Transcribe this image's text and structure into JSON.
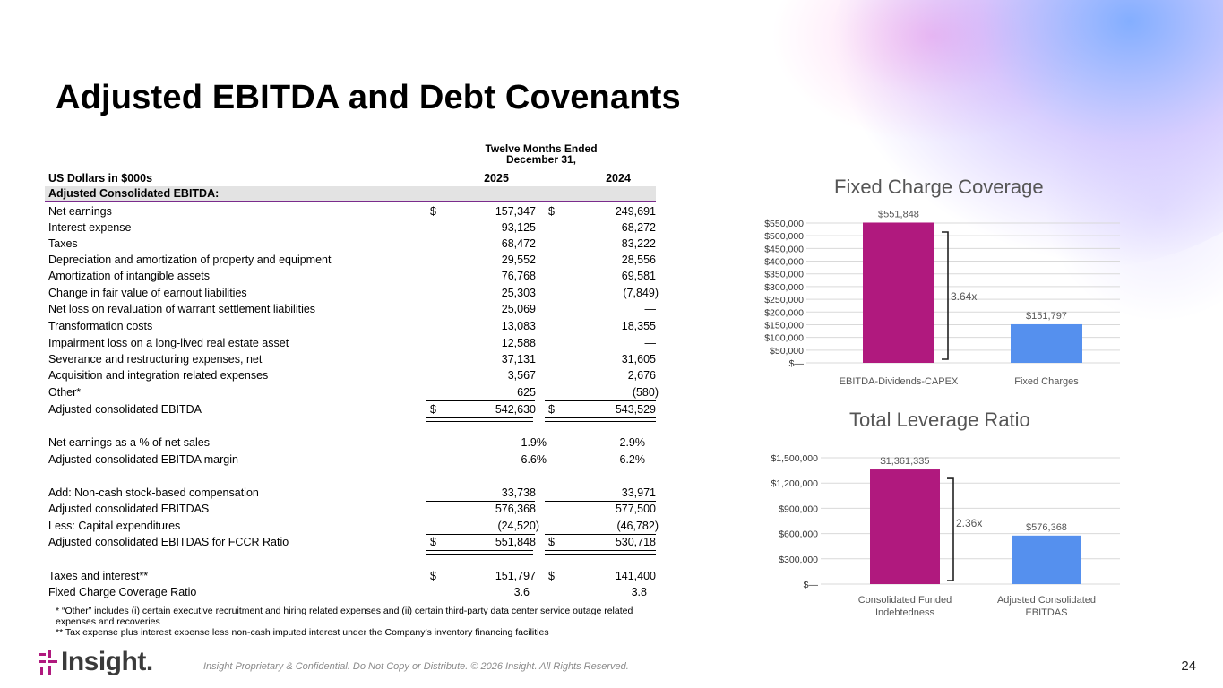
{
  "title": "Adjusted EBITDA and Debt Covenants",
  "table": {
    "period_header_line1": "Twelve Months Ended",
    "period_header_line2": "December 31,",
    "units_label": "US Dollars in $000s",
    "col_2025": "2025",
    "col_2024": "2024",
    "section_label": "Adjusted Consolidated EBITDA:",
    "currency_symbol": "$",
    "rows": [
      {
        "label": "Net earnings",
        "v2025": "157,347",
        "v2024": "249,691"
      },
      {
        "label": "Interest expense",
        "v2025": "93,125",
        "v2024": "68,272"
      },
      {
        "label": "Taxes",
        "v2025": "68,472",
        "v2024": "83,222"
      },
      {
        "label": "Depreciation and amortization of property and equipment",
        "v2025": "29,552",
        "v2024": "28,556"
      },
      {
        "label": "Amortization of intangible assets",
        "v2025": "76,768",
        "v2024": "69,581"
      },
      {
        "label": "Change in fair value of earnout liabilities",
        "v2025": "25,303",
        "v2024": "(7,849)"
      },
      {
        "label": "Net loss on revaluation of warrant settlement liabilities",
        "v2025": "25,069",
        "v2024": "—"
      },
      {
        "label": "Transformation costs",
        "v2025": "13,083",
        "v2024": "18,355"
      },
      {
        "label": "Impairment loss on a long-lived real estate asset",
        "v2025": "12,588",
        "v2024": "—"
      },
      {
        "label": "Severance and restructuring expenses, net",
        "v2025": "37,131",
        "v2024": "31,605"
      },
      {
        "label": "Acquisition and integration related expenses",
        "v2025": "3,567",
        "v2024": "2,676"
      },
      {
        "label": "Other*",
        "v2025": "625",
        "v2024": "(580)"
      },
      {
        "label": "Adjusted consolidated EBITDA",
        "v2025": "542,630",
        "v2024": "543,529"
      },
      {
        "label": "Net earnings as a % of net sales",
        "v2025": "1.9%",
        "v2024": "2.9%"
      },
      {
        "label": "Adjusted consolidated EBITDA margin",
        "v2025": "6.6%",
        "v2024": "6.2%"
      },
      {
        "label": "Add: Non-cash stock-based compensation",
        "v2025": "33,738",
        "v2024": "33,971"
      },
      {
        "label": "Adjusted consolidated EBITDAS",
        "v2025": "576,368",
        "v2024": "577,500"
      },
      {
        "label": "Less: Capital expenditures",
        "v2025": "(24,520)",
        "v2024": "(46,782)"
      },
      {
        "label": "Adjusted consolidated EBITDAS for FCCR Ratio",
        "v2025": "551,848",
        "v2024": "530,718"
      },
      {
        "label": "Taxes and interest**",
        "v2025": "151,797",
        "v2024": "141,400"
      },
      {
        "label": "Fixed Charge Coverage Ratio",
        "v2025": "3.6",
        "v2024": "3.8"
      }
    ]
  },
  "footnotes": {
    "note1": "* “Other” includes (i) certain executive recruitment and hiring related expenses and (ii) certain third-party data center service outage related expenses and recoveries",
    "note2": "** Tax expense plus interest expense less non-cash imputed interest under the Company’s inventory financing facilities"
  },
  "footer": {
    "confidential": "Insight Proprietary & Confidential. Do Not Copy or Distribute. © 2026 Insight. All Rights Reserved.",
    "page_number": "24",
    "logo_text": "Insight."
  },
  "colors": {
    "magenta": "#b0197e",
    "blue": "#5590ee",
    "grid": "#d9d9d9",
    "section_rule": "#7a2b8c"
  },
  "chart_data": [
    {
      "type": "bar",
      "title": "Fixed Charge Coverage",
      "categories": [
        "EBITDA-Dividends-CAPEX",
        "Fixed Charges"
      ],
      "values": [
        551848,
        151797
      ],
      "value_labels": [
        "$551,848",
        "$151,797"
      ],
      "ylim": [
        0,
        550000
      ],
      "yticks": [
        0,
        50000,
        100000,
        150000,
        200000,
        250000,
        300000,
        350000,
        400000,
        450000,
        500000,
        550000
      ],
      "ytick_labels": [
        "$—",
        "$50,000",
        "$100,000",
        "$150,000",
        "$200,000",
        "$250,000",
        "$300,000",
        "$350,000",
        "$400,000",
        "$450,000",
        "$500,000",
        "$550,000"
      ],
      "annotation": "3.64x",
      "grid": true
    },
    {
      "type": "bar",
      "title": "Total Leverage Ratio",
      "categories": [
        "Consolidated Funded Indebtedness",
        "Adjusted Consolidated EBITDAS"
      ],
      "category_lines": [
        [
          "Consolidated Funded",
          "Indebtedness"
        ],
        [
          "Adjusted Consolidated",
          "EBITDAS"
        ]
      ],
      "values": [
        1361335,
        576368
      ],
      "value_labels": [
        "$1,361,335",
        "$576,368"
      ],
      "ylim": [
        0,
        1500000
      ],
      "yticks": [
        0,
        300000,
        600000,
        900000,
        1200000,
        1500000
      ],
      "ytick_labels": [
        "$—",
        "$300,000",
        "$600,000",
        "$900,000",
        "$1,200,000",
        "$1,500,000"
      ],
      "annotation": "2.36x",
      "grid": true
    }
  ]
}
